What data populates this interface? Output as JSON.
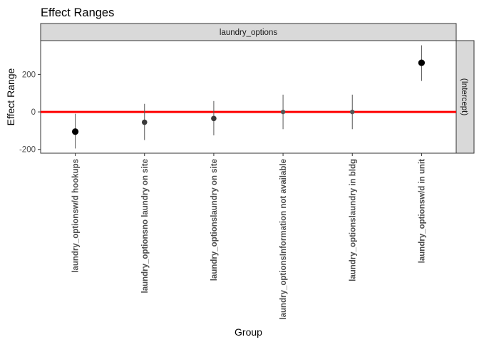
{
  "chart_data": {
    "type": "scatter",
    "title": "Effect Ranges",
    "xlabel": "Group",
    "ylabel": "Effect Range",
    "facet_top": "laundry_options",
    "facet_right": "(Intercept)",
    "ylim": [
      -220,
      380
    ],
    "yticks": [
      -200,
      0,
      200
    ],
    "ytick_labels": [
      "-200",
      "0",
      "200"
    ],
    "reference_line": {
      "y": 0,
      "color": "#ff0000"
    },
    "categories": [
      "laundry_optionsw/d hookups",
      "laundry_optionsno laundry on site",
      "laundry_optionslaundry on site",
      "laundry_optionsInformation not available",
      "laundry_optionslaundry in bldg",
      "laundry_optionsw/d in unit"
    ],
    "points": [
      {
        "estimate": -105,
        "lower": -195,
        "upper": -10,
        "size": "large"
      },
      {
        "estimate": -55,
        "lower": -150,
        "upper": 43,
        "size": "medium"
      },
      {
        "estimate": -35,
        "lower": -125,
        "upper": 58,
        "size": "medium"
      },
      {
        "estimate": 0,
        "lower": -92,
        "upper": 92,
        "size": "small"
      },
      {
        "estimate": 0,
        "lower": -92,
        "upper": 92,
        "size": "small"
      },
      {
        "estimate": 262,
        "lower": 165,
        "upper": 355,
        "size": "large"
      }
    ],
    "grid": false
  }
}
